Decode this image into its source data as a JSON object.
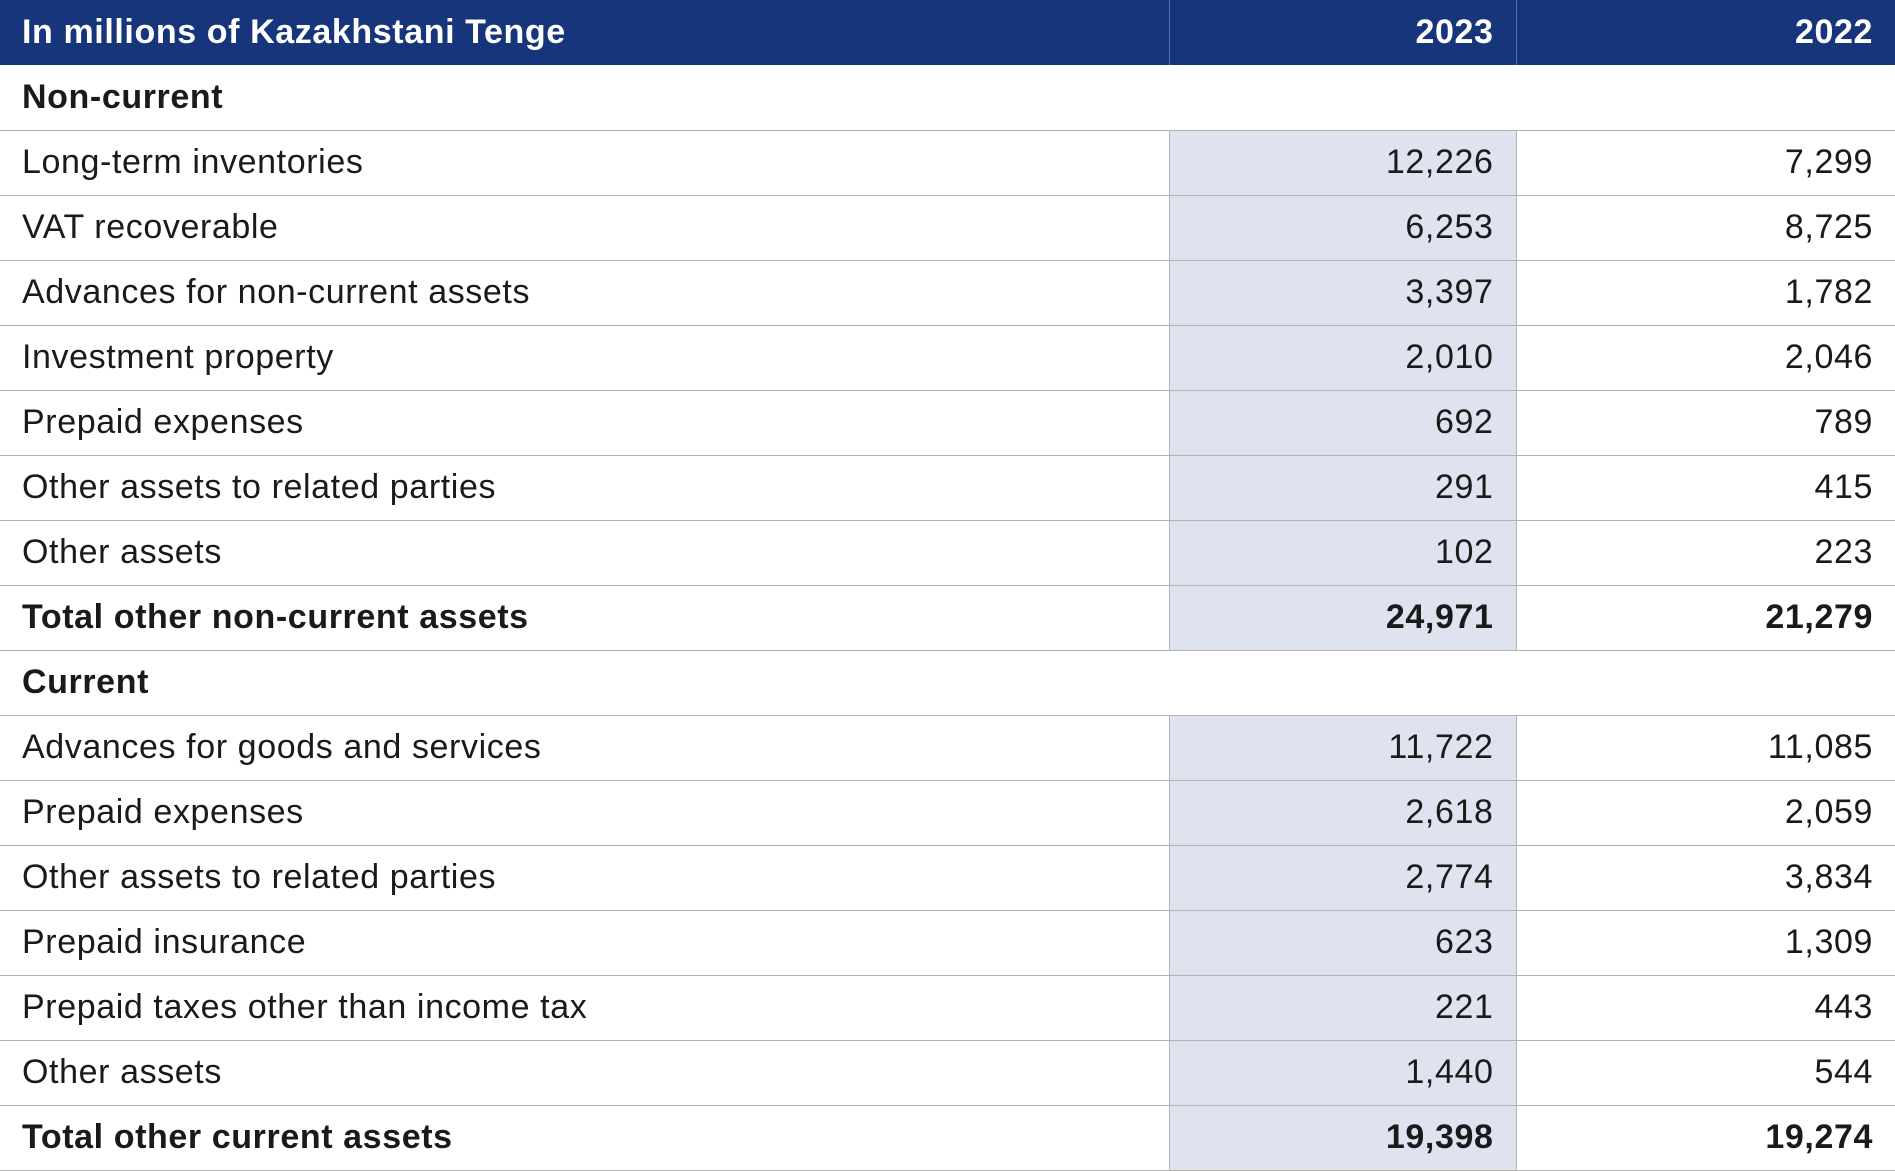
{
  "header": {
    "label": "In millions of Kazakhstani Tenge",
    "col_2023": "2023",
    "col_2022": "2022"
  },
  "sections": [
    {
      "title": "Non-current",
      "rows": [
        {
          "label": "Long-term inventories",
          "v2023": "12,226",
          "v2022": "7,299"
        },
        {
          "label": "VAT recoverable",
          "v2023": "6,253",
          "v2022": "8,725"
        },
        {
          "label": "Advances for non-current assets",
          "v2023": "3,397",
          "v2022": "1,782"
        },
        {
          "label": "Investment property",
          "v2023": "2,010",
          "v2022": "2,046"
        },
        {
          "label": "Prepaid expenses",
          "v2023": "692",
          "v2022": "789"
        },
        {
          "label": "Other assets to related parties",
          "v2023": "291",
          "v2022": "415"
        },
        {
          "label": "Other assets",
          "v2023": "102",
          "v2022": "223"
        }
      ],
      "total": {
        "label": "Total other non-current assets",
        "v2023": "24,971",
        "v2022": "21,279"
      }
    },
    {
      "title": "Current",
      "rows": [
        {
          "label": "Advances for goods and services",
          "v2023": "11,722",
          "v2022": "11,085"
        },
        {
          "label": "Prepaid expenses",
          "v2023": "2,618",
          "v2022": "2,059"
        },
        {
          "label": "Other assets to related parties",
          "v2023": "2,774",
          "v2022": "3,834"
        },
        {
          "label": "Prepaid insurance",
          "v2023": "623",
          "v2022": "1,309"
        },
        {
          "label": "Prepaid taxes other than income tax",
          "v2023": "221",
          "v2022": "443"
        },
        {
          "label": "Other assets",
          "v2023": "1,440",
          "v2022": "544"
        }
      ],
      "total": {
        "label": "Total other current assets",
        "v2023": "19,398",
        "v2022": "19,274"
      }
    }
  ],
  "colors": {
    "header_bg": "#17357a",
    "shade_2023": "#dfe3f0",
    "row_border": "#b3b3b3"
  }
}
